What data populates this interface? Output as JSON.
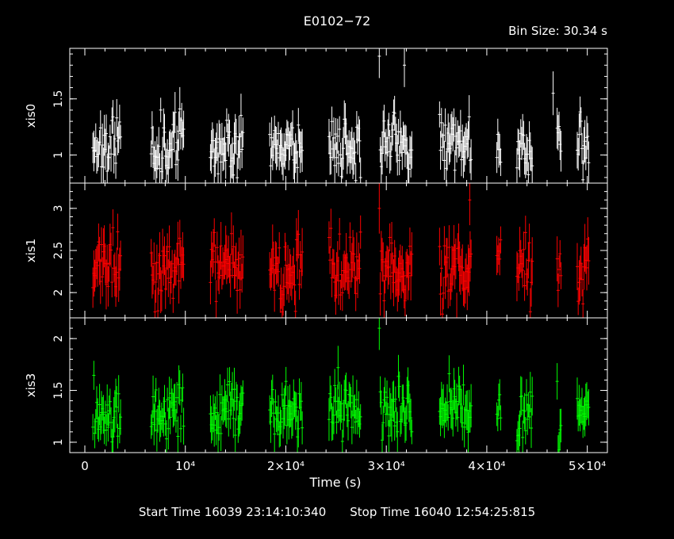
{
  "header": {
    "title": "E0102−72",
    "bin_size": "Bin Size: 30.34 s"
  },
  "footer": {
    "start": "Start Time 16039 23:14:10:340",
    "stop": "Stop Time 16040 12:54:25:815"
  },
  "chart_data": {
    "type": "scatter",
    "xlabel": "Time (s)",
    "xlim": [
      -1500,
      52000
    ],
    "x_ticks": [
      0,
      10000,
      20000,
      30000,
      40000,
      50000
    ],
    "x_tick_labels": [
      "0",
      "10⁴",
      "2×10⁴",
      "3×10⁴",
      "4×10⁴",
      "5×10⁴"
    ],
    "segments": [
      [
        800,
        3600
      ],
      [
        6600,
        9900
      ],
      [
        12500,
        15800
      ],
      [
        18400,
        21700
      ],
      [
        24300,
        27500
      ],
      [
        29400,
        32600
      ],
      [
        35300,
        38500
      ],
      [
        41000,
        41400
      ],
      [
        43000,
        44600
      ],
      [
        47000,
        47400
      ],
      [
        49000,
        50200
      ]
    ],
    "panels": [
      {
        "name": "xis0",
        "color": "#ffffff",
        "ylim": [
          0.75,
          1.95
        ],
        "y_ticks": [
          1,
          1.5
        ],
        "y_tick_labels": [
          "1",
          "1.5"
        ],
        "level": 1.1,
        "spread": 0.13,
        "seed": 11,
        "outliers": [
          {
            "x": 29300,
            "y": 1.88
          },
          {
            "x": 31800,
            "y": 1.8
          },
          {
            "x": 46600,
            "y": 1.55
          }
        ]
      },
      {
        "name": "xis1",
        "color": "#ff0000",
        "ylim": [
          1.7,
          3.3
        ],
        "y_ticks": [
          2,
          2.5,
          3
        ],
        "y_tick_labels": [
          "2",
          "2.5",
          "3"
        ],
        "level": 2.28,
        "spread": 0.2,
        "seed": 23,
        "outliers": [
          {
            "x": 29300,
            "y": 3.0
          },
          {
            "x": 38300,
            "y": 3.1
          }
        ]
      },
      {
        "name": "xis3",
        "color": "#00ff00",
        "ylim": [
          0.9,
          2.2
        ],
        "y_ticks": [
          1,
          1.5,
          2
        ],
        "y_tick_labels": [
          "1",
          "1.5",
          "2"
        ],
        "level": 1.3,
        "spread": 0.14,
        "seed": 37,
        "outliers": [
          {
            "x": 29300,
            "y": 2.1
          },
          {
            "x": 25200,
            "y": 1.72
          }
        ]
      }
    ]
  }
}
